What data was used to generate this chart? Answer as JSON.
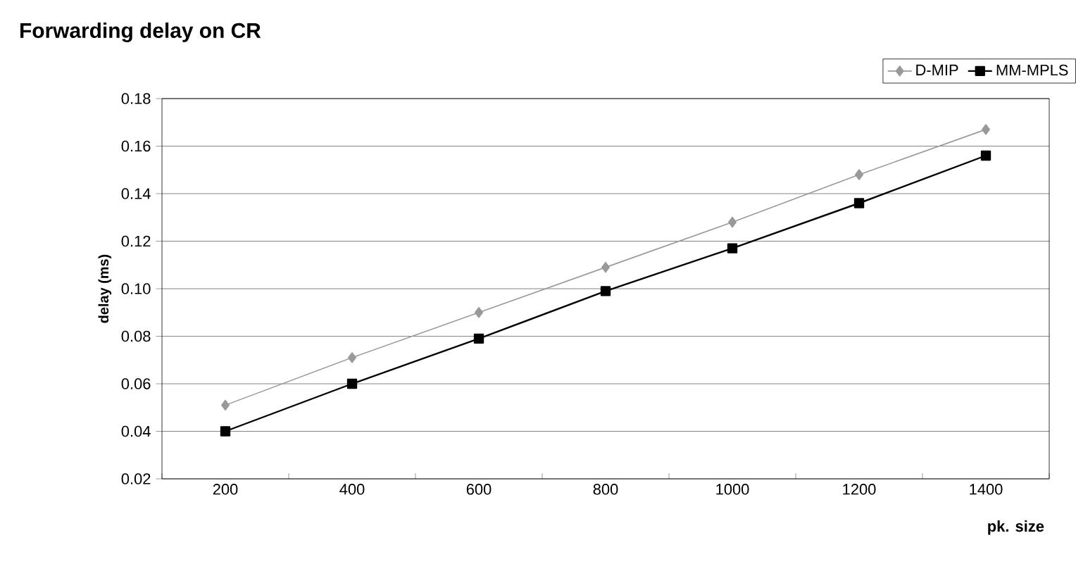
{
  "chart_data": {
    "type": "line",
    "title": "Forwarding delay on CR",
    "xlabel": "pk. size",
    "ylabel": "delay (ms)",
    "categories": [
      "200",
      "400",
      "600",
      "800",
      "1000",
      "1200",
      "1400"
    ],
    "series": [
      {
        "name": "D-MIP",
        "color": "#999999",
        "marker": "diamond",
        "values": [
          0.051,
          0.071,
          0.09,
          0.109,
          0.128,
          0.148,
          0.167
        ]
      },
      {
        "name": "MM-MPLS",
        "color": "#000000",
        "marker": "square",
        "values": [
          0.04,
          0.06,
          0.079,
          0.099,
          0.117,
          0.136,
          0.156
        ]
      }
    ],
    "ylim": [
      0.02,
      0.18
    ],
    "yticks": [
      {
        "value": 0.02,
        "label": "0.02"
      },
      {
        "value": 0.04,
        "label": "0.04"
      },
      {
        "value": 0.06,
        "label": "0.06"
      },
      {
        "value": 0.08,
        "label": "0.08"
      },
      {
        "value": 0.1,
        "label": "0.10"
      },
      {
        "value": 0.12,
        "label": "0.12"
      },
      {
        "value": 0.14,
        "label": "0.14"
      },
      {
        "value": 0.16,
        "label": "0.16"
      },
      {
        "value": 0.18,
        "label": "0.18"
      }
    ],
    "grid": "y",
    "legend": "top right",
    "line_style": "solid"
  }
}
